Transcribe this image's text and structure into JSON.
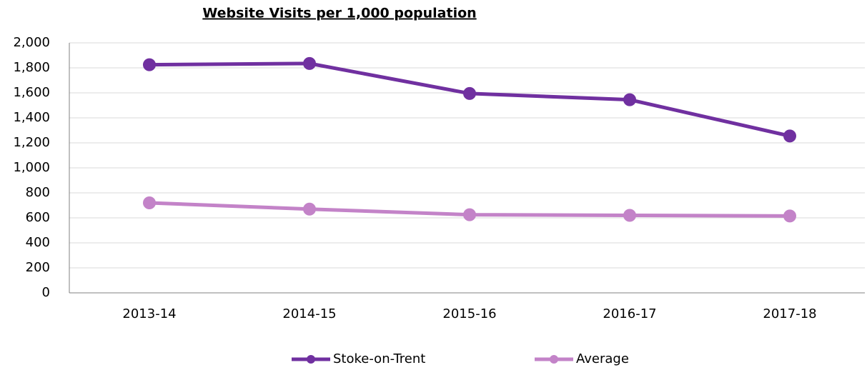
{
  "chart_data": {
    "type": "line",
    "title": "Website Visits per 1,000 population",
    "categories": [
      "2013-14",
      "2014-15",
      "2015-16",
      "2016-17",
      "2017-18"
    ],
    "series": [
      {
        "name": "Stoke-on-Trent",
        "color": "#7030a0",
        "values": [
          1825,
          1835,
          1595,
          1545,
          1255
        ]
      },
      {
        "name": "Average",
        "color": "#c383c8",
        "values": [
          720,
          670,
          625,
          620,
          615
        ]
      }
    ],
    "ylim": [
      0,
      2000
    ],
    "yticks": [
      0,
      200,
      400,
      600,
      800,
      {
        "value": 1000,
        "label": "1,000"
      },
      {
        "value": 1200,
        "label": "1,200"
      },
      {
        "value": 1400,
        "label": "1,400"
      },
      {
        "value": 1600,
        "label": "1,600"
      },
      {
        "value": 1800,
        "label": "1,800"
      },
      {
        "value": 2000,
        "label": "2,000"
      }
    ],
    "grid": true,
    "legend": "bottom"
  }
}
